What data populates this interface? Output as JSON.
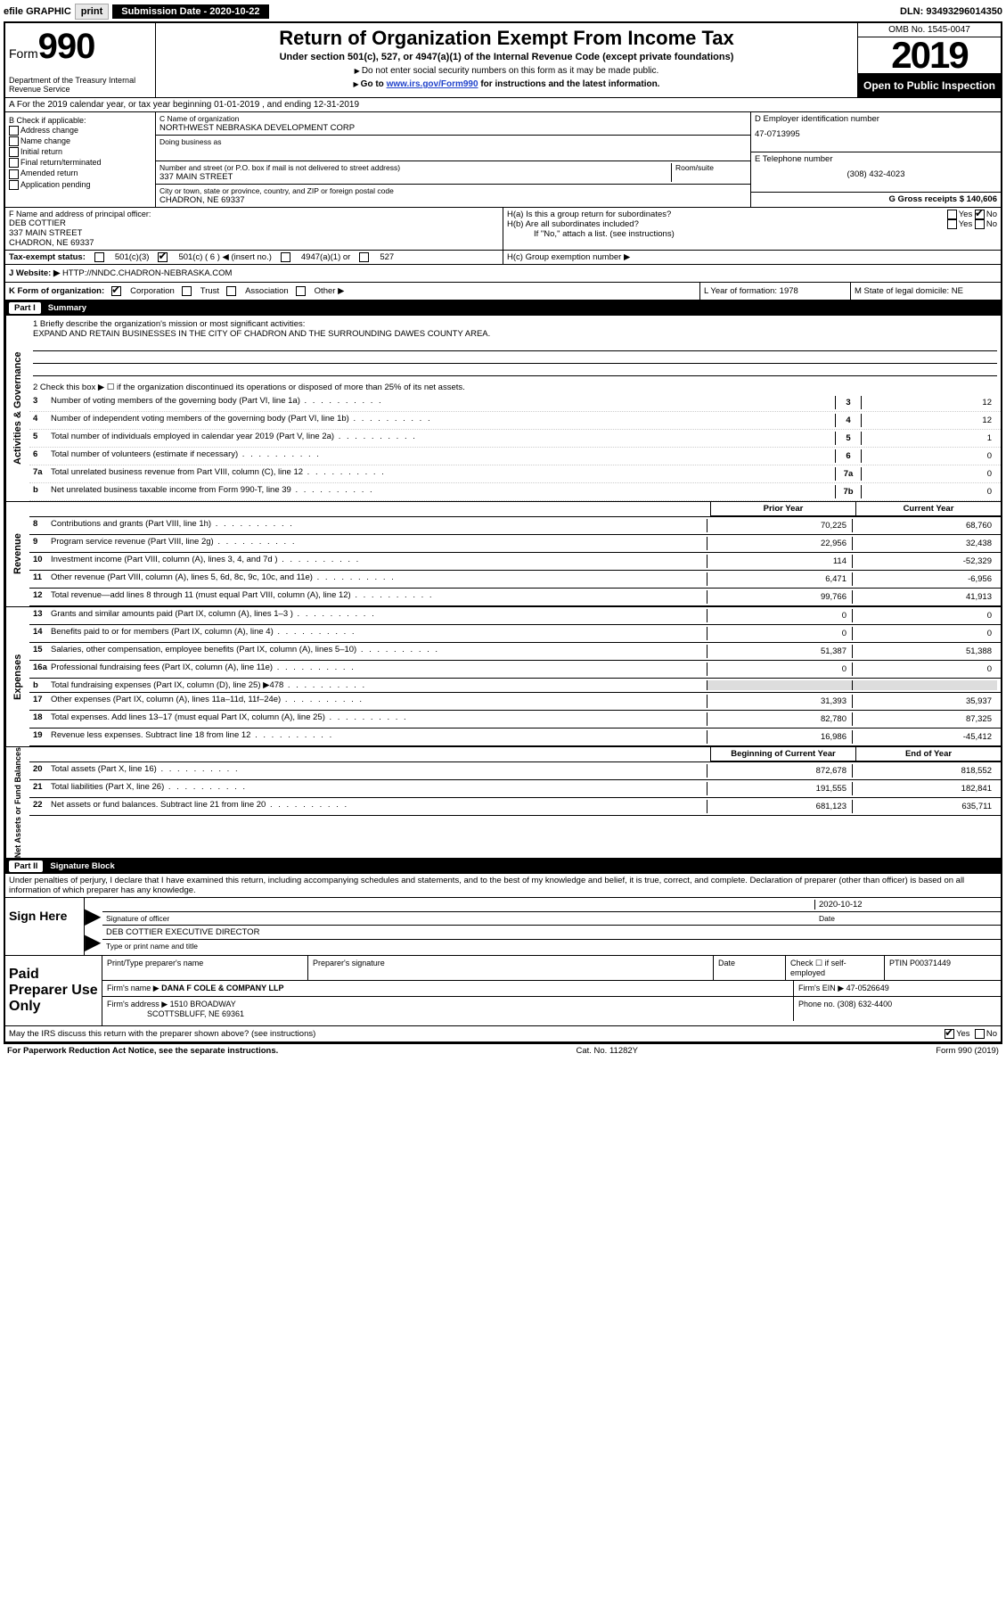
{
  "topbar": {
    "efile": "efile GRAPHIC",
    "print": "print",
    "subdate_label": "Submission Date - 2020-10-22",
    "dln": "DLN: 93493296014350"
  },
  "header": {
    "form_label": "Form",
    "form_num": "990",
    "dept": "Department of the Treasury Internal Revenue Service",
    "title": "Return of Organization Exempt From Income Tax",
    "sub": "Under section 501(c), 527, or 4947(a)(1) of the Internal Revenue Code (except private foundations)",
    "note1_pre": "Do not enter social security numbers on this form as it may be made public.",
    "note2_pre": "Go to ",
    "note2_link": "www.irs.gov/Form990",
    "note2_post": " for instructions and the latest information.",
    "omb": "OMB No. 1545-0047",
    "year": "2019",
    "open": "Open to Public Inspection"
  },
  "rowA": "A  For the 2019 calendar year, or tax year beginning 01-01-2019    , and ending 12-31-2019",
  "colB": {
    "label": "B Check if applicable:",
    "items": [
      "Address change",
      "Name change",
      "Initial return",
      "Final return/terminated",
      "Amended return",
      "Application pending"
    ]
  },
  "colC": {
    "name_label": "C Name of organization",
    "name": "NORTHWEST NEBRASKA DEVELOPMENT CORP",
    "dba_label": "Doing business as",
    "addr_label": "Number and street (or P.O. box if mail is not delivered to street address)",
    "room_label": "Room/suite",
    "addr": "337 MAIN STREET",
    "city_label": "City or town, state or province, country, and ZIP or foreign postal code",
    "city": "CHADRON, NE  69337"
  },
  "colD": {
    "label": "D Employer identification number",
    "val": "47-0713995"
  },
  "colE": {
    "label": "E Telephone number",
    "val": "(308) 432-4023"
  },
  "colG": {
    "label": "G Gross receipts $ 140,606"
  },
  "colF": {
    "label": "F  Name and address of principal officer:",
    "name": "DEB COTTIER",
    "addr1": "337 MAIN STREET",
    "addr2": "CHADRON, NE  69337"
  },
  "colH": {
    "a": "H(a)  Is this a group return for subordinates?",
    "b": "H(b)  Are all subordinates included?",
    "bnote": "If \"No,\" attach a list. (see instructions)",
    "c": "H(c)  Group exemption number ▶",
    "yes": "Yes",
    "no": "No"
  },
  "taxI": "Tax-exempt status:",
  "taxI_opts": [
    "501(c)(3)",
    "501(c) ( 6 ) ◀ (insert no.)",
    "4947(a)(1) or",
    "527"
  ],
  "website": {
    "label": "J  Website: ▶",
    "val": "HTTP://NNDC.CHADRON-NEBRASKA.COM"
  },
  "rowK": {
    "label": "K Form of organization:",
    "opts": [
      "Corporation",
      "Trust",
      "Association",
      "Other ▶"
    ]
  },
  "rowL": {
    "label": "L Year of formation: 1978"
  },
  "rowM": {
    "label": "M State of legal domicile: NE"
  },
  "part1": {
    "num": "Part I",
    "title": "Summary"
  },
  "summary": {
    "l1_label": "1  Briefly describe the organization's mission or most significant activities:",
    "l1_text": "EXPAND AND RETAIN BUSINESSES IN THE CITY OF CHADRON AND THE SURROUNDING DAWES COUNTY AREA.",
    "l2": "2   Check this box ▶ ☐  if the organization discontinued its operations or disposed of more than 25% of its net assets.",
    "lines": [
      {
        "n": "3",
        "t": "Number of voting members of the governing body (Part VI, line 1a)",
        "b": "3",
        "v": "12"
      },
      {
        "n": "4",
        "t": "Number of independent voting members of the governing body (Part VI, line 1b)",
        "b": "4",
        "v": "12"
      },
      {
        "n": "5",
        "t": "Total number of individuals employed in calendar year 2019 (Part V, line 2a)",
        "b": "5",
        "v": "1"
      },
      {
        "n": "6",
        "t": "Total number of volunteers (estimate if necessary)",
        "b": "6",
        "v": "0"
      },
      {
        "n": "7a",
        "t": "Total unrelated business revenue from Part VIII, column (C), line 12",
        "b": "7a",
        "v": "0"
      },
      {
        "n": " b",
        "t": "Net unrelated business taxable income from Form 990-T, line 39",
        "b": "7b",
        "v": "0"
      }
    ],
    "prior_hdr": "Prior Year",
    "curr_hdr": "Current Year",
    "rev": [
      {
        "n": "8",
        "t": "Contributions and grants (Part VIII, line 1h)",
        "p": "70,225",
        "c": "68,760"
      },
      {
        "n": "9",
        "t": "Program service revenue (Part VIII, line 2g)",
        "p": "22,956",
        "c": "32,438"
      },
      {
        "n": "10",
        "t": "Investment income (Part VIII, column (A), lines 3, 4, and 7d )",
        "p": "114",
        "c": "-52,329"
      },
      {
        "n": "11",
        "t": "Other revenue (Part VIII, column (A), lines 5, 6d, 8c, 9c, 10c, and 11e)",
        "p": "6,471",
        "c": "-6,956"
      },
      {
        "n": "12",
        "t": "Total revenue—add lines 8 through 11 (must equal Part VIII, column (A), line 12)",
        "p": "99,766",
        "c": "41,913"
      }
    ],
    "exp": [
      {
        "n": "13",
        "t": "Grants and similar amounts paid (Part IX, column (A), lines 1–3 )",
        "p": "0",
        "c": "0"
      },
      {
        "n": "14",
        "t": "Benefits paid to or for members (Part IX, column (A), line 4)",
        "p": "0",
        "c": "0"
      },
      {
        "n": "15",
        "t": "Salaries, other compensation, employee benefits (Part IX, column (A), lines 5–10)",
        "p": "51,387",
        "c": "51,388"
      },
      {
        "n": "16a",
        "t": "Professional fundraising fees (Part IX, column (A), line 11e)",
        "p": "0",
        "c": "0"
      },
      {
        "n": "b",
        "t": "Total fundraising expenses (Part IX, column (D), line 25) ▶478",
        "p": "",
        "c": ""
      },
      {
        "n": "17",
        "t": "Other expenses (Part IX, column (A), lines 11a–11d, 11f–24e)",
        "p": "31,393",
        "c": "35,937"
      },
      {
        "n": "18",
        "t": "Total expenses. Add lines 13–17 (must equal Part IX, column (A), line 25)",
        "p": "82,780",
        "c": "87,325"
      },
      {
        "n": "19",
        "t": "Revenue less expenses. Subtract line 18 from line 12",
        "p": "16,986",
        "c": "-45,412"
      }
    ],
    "bal_hdr_begin": "Beginning of Current Year",
    "bal_hdr_end": "End of Year",
    "bal": [
      {
        "n": "20",
        "t": "Total assets (Part X, line 16)",
        "p": "872,678",
        "c": "818,552"
      },
      {
        "n": "21",
        "t": "Total liabilities (Part X, line 26)",
        "p": "191,555",
        "c": "182,841"
      },
      {
        "n": "22",
        "t": "Net assets or fund balances. Subtract line 21 from line 20",
        "p": "681,123",
        "c": "635,711"
      }
    ]
  },
  "vtabs": {
    "gov": "Activities & Governance",
    "rev": "Revenue",
    "exp": "Expenses",
    "net": "Net Assets or Fund Balances"
  },
  "part2": {
    "num": "Part II",
    "title": "Signature Block"
  },
  "perjury": "Under penalties of perjury, I declare that I have examined this return, including accompanying schedules and statements, and to the best of my knowledge and belief, it is true, correct, and complete. Declaration of preparer (other than officer) is based on all information of which preparer has any knowledge.",
  "sign": {
    "here": "Sign Here",
    "sig_label": "Signature of officer",
    "date": "2020-10-12",
    "date_label": "Date",
    "name": "DEB COTTIER  EXECUTIVE DIRECTOR",
    "name_label": "Type or print name and title"
  },
  "paid": {
    "label": "Paid Preparer Use Only",
    "hdr": [
      "Print/Type preparer's name",
      "Preparer's signature",
      "Date",
      "Check ☐ if self-employed",
      "PTIN P00371449"
    ],
    "firm_name_lbl": "Firm's name ▶",
    "firm_name": "DANA F COLE & COMPANY LLP",
    "firm_ein_lbl": "Firm's EIN ▶",
    "firm_ein": "47-0526649",
    "firm_addr_lbl": "Firm's address ▶",
    "firm_addr1": "1510 BROADWAY",
    "firm_addr2": "SCOTTSBLUFF, NE  69361",
    "phone_lbl": "Phone no.",
    "phone": "(308) 632-4400"
  },
  "may_discuss": "May the IRS discuss this return with the preparer shown above? (see instructions)",
  "footer": {
    "left": "For Paperwork Reduction Act Notice, see the separate instructions.",
    "mid": "Cat. No. 11282Y",
    "right": "Form 990 (2019)"
  }
}
